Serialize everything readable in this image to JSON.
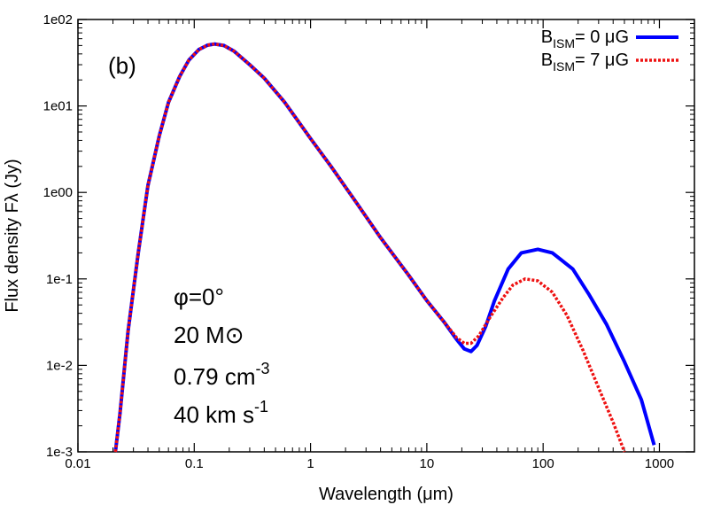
{
  "chart_data": {
    "type": "line",
    "title": "",
    "panel_label": "(b)",
    "xlabel": "Wavelength (μm)",
    "ylabel": "Flux density Fλ (Jy)",
    "xscale": "log",
    "yscale": "log",
    "xlim": [
      0.01,
      2000
    ],
    "ylim": [
      0.001,
      100
    ],
    "x_ticks": [
      {
        "value": 0.01,
        "label": "0.01"
      },
      {
        "value": 0.1,
        "label": "0.1"
      },
      {
        "value": 1,
        "label": "1"
      },
      {
        "value": 10,
        "label": "10"
      },
      {
        "value": 100,
        "label": "100"
      },
      {
        "value": 1000,
        "label": "1000"
      }
    ],
    "y_ticks": [
      {
        "value": 0.001,
        "label": "1e-3"
      },
      {
        "value": 0.01,
        "label": "1e-2"
      },
      {
        "value": 0.1,
        "label": "1e-1"
      },
      {
        "value": 1,
        "label": "1e00"
      },
      {
        "value": 10,
        "label": "1e01"
      },
      {
        "value": 100,
        "label": "1e02"
      }
    ],
    "grid": false,
    "legend_position": "top-right",
    "series": [
      {
        "name": "BISM= 0 μG",
        "legend_base": "B",
        "legend_sub": "ISM",
        "legend_rest": "= 0 μG",
        "color": "#0000ff",
        "dash": "solid",
        "x": [
          0.021,
          0.023,
          0.027,
          0.033,
          0.04,
          0.05,
          0.06,
          0.075,
          0.09,
          0.11,
          0.13,
          0.15,
          0.18,
          0.22,
          0.3,
          0.4,
          0.6,
          1.0,
          1.5,
          2.5,
          4,
          7,
          10,
          14,
          18,
          21,
          24,
          27,
          32,
          38,
          50,
          65,
          90,
          120,
          180,
          250,
          350,
          500,
          700,
          900
        ],
        "y": [
          0.001,
          0.0028,
          0.025,
          0.2,
          1.2,
          4.5,
          11,
          22,
          34,
          45,
          50.5,
          52,
          50,
          43,
          30,
          21,
          11,
          4.2,
          2.0,
          0.75,
          0.3,
          0.11,
          0.056,
          0.032,
          0.02,
          0.0155,
          0.0145,
          0.017,
          0.028,
          0.055,
          0.13,
          0.2,
          0.22,
          0.2,
          0.13,
          0.065,
          0.03,
          0.011,
          0.004,
          0.0012
        ]
      },
      {
        "name": "BISM= 7 μG",
        "legend_base": "B",
        "legend_sub": "ISM",
        "legend_rest": "= 7 μG",
        "color": "#ee1111",
        "dash": "dotted",
        "x": [
          0.021,
          0.023,
          0.027,
          0.033,
          0.04,
          0.05,
          0.06,
          0.075,
          0.09,
          0.11,
          0.13,
          0.15,
          0.18,
          0.22,
          0.3,
          0.4,
          0.6,
          1.0,
          1.5,
          2.5,
          4,
          7,
          10,
          14,
          18,
          21,
          24,
          28,
          35,
          45,
          55,
          70,
          90,
          120,
          160,
          220,
          300,
          400,
          500
        ],
        "y": [
          0.001,
          0.0028,
          0.025,
          0.2,
          1.2,
          4.5,
          11,
          22,
          34,
          45,
          50.5,
          52,
          50,
          43,
          30,
          21,
          11,
          4.2,
          2.0,
          0.75,
          0.3,
          0.11,
          0.056,
          0.032,
          0.021,
          0.018,
          0.018,
          0.022,
          0.036,
          0.06,
          0.085,
          0.1,
          0.095,
          0.07,
          0.038,
          0.015,
          0.0055,
          0.0022,
          0.001
        ]
      }
    ],
    "annotations": [
      {
        "type": "text",
        "text": "φ=0°"
      },
      {
        "type": "text",
        "text": "20 M⊙"
      },
      {
        "type": "sup",
        "base": "0.79 cm",
        "sup": "-3"
      },
      {
        "type": "sup",
        "base": "40 km s",
        "sup": "-1"
      }
    ]
  }
}
